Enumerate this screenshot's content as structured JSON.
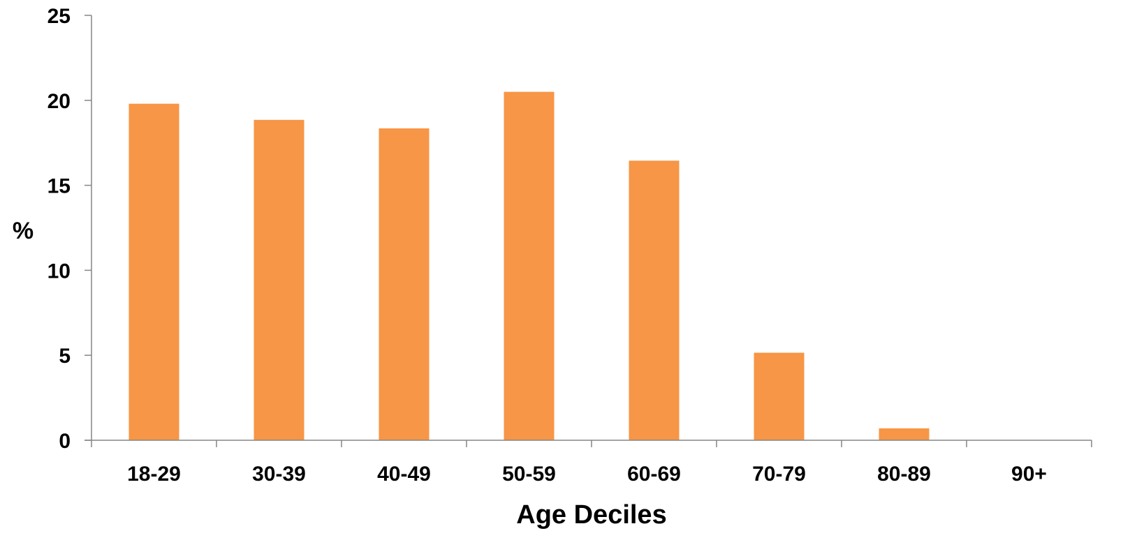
{
  "chart_data": {
    "type": "bar",
    "categories": [
      "18-29",
      "30-39",
      "40-49",
      "50-59",
      "60-69",
      "70-79",
      "80-89",
      "90+"
    ],
    "values": [
      19.8,
      18.85,
      18.35,
      20.5,
      16.45,
      5.15,
      0.7,
      0
    ],
    "xlabel": "Age Deciles",
    "ylabel": "%",
    "ylim": [
      0,
      25
    ],
    "yticks": [
      "0",
      "5",
      "10",
      "15",
      "20",
      "25"
    ],
    "grid": false,
    "legend": "none",
    "colors": {
      "bar": "#F79646",
      "axis": "#868686"
    }
  }
}
